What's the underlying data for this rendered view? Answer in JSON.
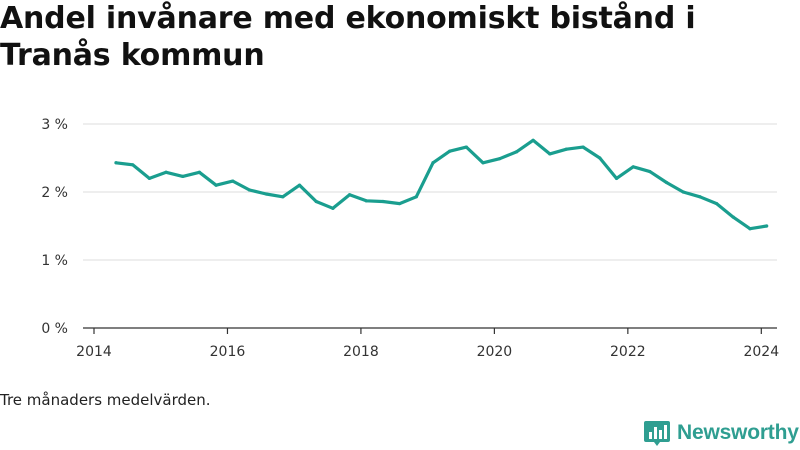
{
  "title": "Andel invånare med ekonomiskt bistånd i Tranås kommun",
  "footnote": "Tre månaders medelvärden.",
  "brand": {
    "name": "Newsworthy",
    "color": "#2f9e91",
    "icon": "newsworthy-logo-icon"
  },
  "colors": {
    "line": "#1a9e8f",
    "grid": "#dddddd",
    "axis": "#333333"
  },
  "chart_data": {
    "type": "line",
    "title": "Andel invånare med ekonomiskt bistånd i Tranås kommun",
    "xlabel": "",
    "ylabel": "",
    "x_ticks": [
      "2014",
      "2016",
      "2018",
      "2020",
      "2022",
      "2024"
    ],
    "x_tick_values": [
      2014,
      2016,
      2018,
      2020,
      2022,
      2024
    ],
    "y_ticks": [
      "0 %",
      "1 %",
      "2 %",
      "3 %"
    ],
    "y_tick_values": [
      0,
      1,
      2,
      3
    ],
    "xlim": [
      2014,
      2024.4
    ],
    "ylim": [
      0,
      3
    ],
    "grid": true,
    "series": [
      {
        "x": [
          2014.33,
          2014.58,
          2014.83,
          2015.08,
          2015.33,
          2015.58,
          2015.83,
          2016.08,
          2016.33,
          2016.58,
          2016.83,
          2017.08,
          2017.33,
          2017.58,
          2017.83,
          2018.08,
          2018.33,
          2018.58,
          2018.83,
          2019.08,
          2019.33,
          2019.58,
          2019.83,
          2020.08,
          2020.33,
          2020.58,
          2020.83,
          2021.08,
          2021.33,
          2021.58,
          2021.83,
          2022.08,
          2022.33,
          2022.58,
          2022.83,
          2023.08,
          2023.33,
          2023.58,
          2023.83,
          2024.08
        ],
        "values": [
          2.43,
          2.4,
          2.2,
          2.29,
          2.23,
          2.29,
          2.1,
          2.16,
          2.03,
          1.97,
          1.93,
          2.1,
          1.86,
          1.76,
          1.96,
          1.87,
          1.86,
          1.83,
          1.93,
          2.43,
          2.6,
          2.66,
          2.43,
          2.49,
          2.59,
          2.76,
          2.56,
          2.63,
          2.66,
          2.5,
          2.2,
          2.37,
          2.3,
          2.14,
          2.0,
          1.93,
          1.83,
          1.63,
          1.46,
          1.5
        ]
      }
    ]
  }
}
